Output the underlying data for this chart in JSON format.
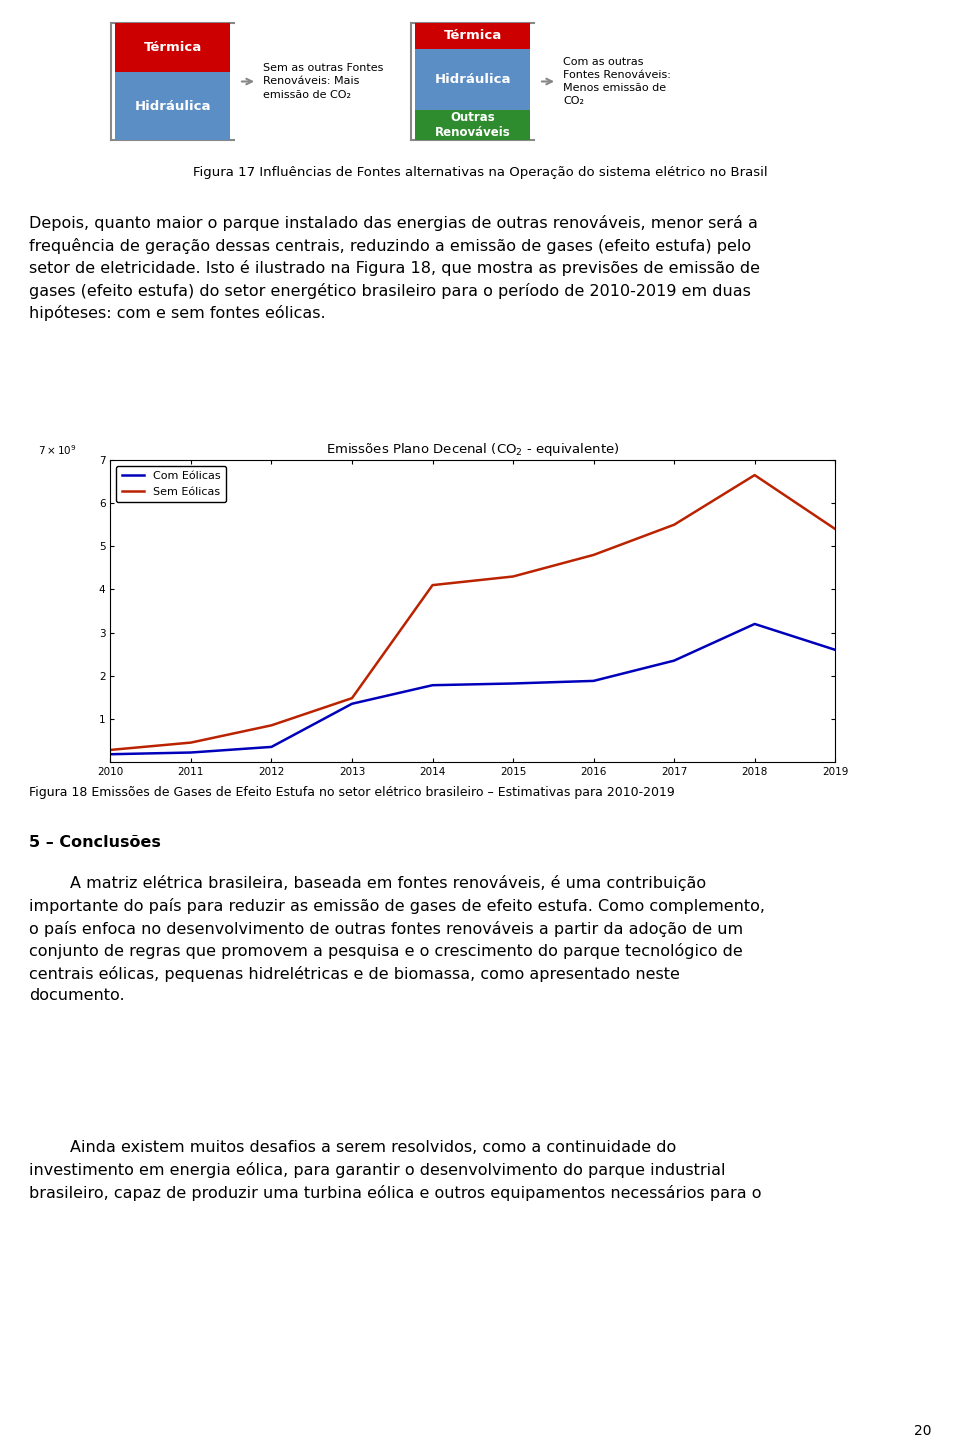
{
  "fig_width": 9.6,
  "fig_height": 14.52,
  "dpi": 100,
  "background_color": "#ffffff",
  "page_number": "20",
  "diagram_title": "Figura 17 Influências de Fontes alternativas na Operação do sistema elétrico no Brasil",
  "left_block": {
    "top_label": "Térmica",
    "top_color": "#cc0000",
    "bottom_label": "Hidráulica",
    "bottom_color": "#5b8ec4"
  },
  "left_arrow_text": "Sem as outras Fontes\nRenováveis: Mais\nemissão de CO₂",
  "right_block": {
    "top_label": "Térmica",
    "top_color": "#cc0000",
    "mid_label": "Hidráulica",
    "mid_color": "#5b8ec4",
    "bot_label": "Outras\nRenováveis",
    "bot_color": "#2e8b2e"
  },
  "right_arrow_text": "Com as outras\nFontes Renováveis:\nMenos emissão de\nCO₂",
  "paragraph_text": "Depois, quanto maior o parque instalado das energias de outras renováveis, menor será a\nfrequência de geração dessas centrais, reduzindo a emissão de gases (efeito estufa) pelo\nsetor de eletricidade. Isto é ilustrado na Figura 18, que mostra as previsões de emissão de\ngases (efeito estufa) do setor energético brasileiro para o período de 2010-2019 em duas\nhipóteses: com e sem fontes eólicas.",
  "chart_title": "Emissões Plano Decenal (CO$_2$ - equivalente)",
  "chart_x_years": [
    2010,
    2011,
    2012,
    2013,
    2014,
    2015,
    2016,
    2017,
    2018,
    2019
  ],
  "blue_line_label": "Com Eólicas",
  "red_line_label": "Sem Eólicas",
  "blue_line_color": "#0000bb",
  "red_line_color": "#bb2200",
  "blue_values": [
    0.18,
    0.22,
    0.35,
    1.35,
    1.78,
    1.82,
    1.88,
    2.35,
    3.2,
    2.6
  ],
  "red_values": [
    0.28,
    0.45,
    0.85,
    1.48,
    4.1,
    4.3,
    4.8,
    5.5,
    6.65,
    5.4
  ],
  "ylim": [
    0,
    7
  ],
  "yticks": [
    1,
    2,
    3,
    4,
    5,
    6,
    7
  ],
  "caption_text": "Figura 18 Emissões de Gases de Efeito Estufa no setor elétrico brasileiro – Estimativas para 2010-2019",
  "conclusion_title": "5 – Conclusões",
  "conclusion_p1": "        A matriz elétrica brasileira, baseada em fontes renováveis, é uma contribuição\nimportante do país para reduzir as emissão de gases de efeito estufa. Como complemento,\no país enfoca no desenvolvimento de outras fontes renováveis a partir da adoção de um\nconjunto de regras que promovem a pesquisa e o crescimento do parque tecnológico de\ncentrais eólicas, pequenas hidrelétricas e de biomassa, como apresentado neste\ndocumento.",
  "conclusion_p2": "        Ainda existem muitos desafios a serem resolvidos, como a continuidade do\ninvestimento em energia eólica, para garantir o desenvolvimento do parque industrial\nbrasileiro, capaz de produzir uma turbina eólica e outros equipamentos necessários para o"
}
